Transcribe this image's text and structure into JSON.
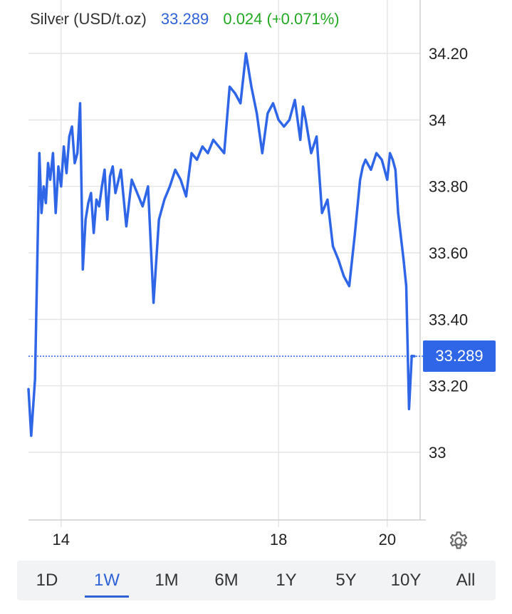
{
  "header": {
    "instrument": "Silver (USD/t.oz)",
    "price": "33.289",
    "change": "0.024 (+0.071%)"
  },
  "last_price_label": "33.289",
  "tabs": [
    {
      "label": "1D",
      "active": false
    },
    {
      "label": "1W",
      "active": true
    },
    {
      "label": "1M",
      "active": false
    },
    {
      "label": "6M",
      "active": false
    },
    {
      "label": "1Y",
      "active": false
    },
    {
      "label": "5Y",
      "active": false
    },
    {
      "label": "10Y",
      "active": false
    },
    {
      "label": "All",
      "active": false
    }
  ],
  "colors": {
    "line": "#2f66e8",
    "grid": "#e6e6e6",
    "price_text": "#2e62d6",
    "change_text": "#22a822"
  },
  "icons": {
    "settings": "gear-icon"
  },
  "chart_data": {
    "type": "line",
    "title": "Silver (USD/t.oz)",
    "y_tick_labels": [
      "34.20",
      "34",
      "33.80",
      "33.60",
      "33.40",
      "33.20",
      "33"
    ],
    "y_tick_values": [
      34.2,
      34.0,
      33.8,
      33.6,
      33.4,
      33.2,
      33.0
    ],
    "x_tick_labels": [
      "14",
      "18",
      "20"
    ],
    "x_tick_values": [
      14,
      18,
      20
    ],
    "ylim": [
      32.8,
      34.35
    ],
    "xlim": [
      13.4,
      20.5
    ],
    "last_value": 33.289,
    "grid": true,
    "series": [
      {
        "x": [
          13.4,
          13.45,
          13.52,
          13.6,
          13.64,
          13.68,
          13.72,
          13.76,
          13.8,
          13.85,
          13.9,
          13.95,
          14.0,
          14.05,
          14.1,
          14.15,
          14.2,
          14.25,
          14.3,
          14.35,
          14.4,
          14.45,
          14.5,
          14.55,
          14.6,
          14.65,
          14.7,
          14.75,
          14.8,
          14.85,
          14.9,
          14.95,
          15.0,
          15.1,
          15.2,
          15.3,
          15.4,
          15.5,
          15.6,
          15.7,
          15.8,
          15.9,
          16.0,
          16.1,
          16.2,
          16.3,
          16.4,
          16.5,
          16.6,
          16.7,
          16.8,
          16.9,
          17.0,
          17.1,
          17.2,
          17.3,
          17.4,
          17.5,
          17.6,
          17.7,
          17.8,
          17.9,
          18.0,
          18.1,
          18.2,
          18.3,
          18.4,
          18.45,
          18.5,
          18.6,
          18.7,
          18.8,
          18.9,
          19.0,
          19.1,
          19.2,
          19.3,
          19.4,
          19.5,
          19.55,
          19.6,
          19.7,
          19.8,
          19.9,
          20.0,
          20.05,
          20.1,
          20.15,
          20.2,
          20.25,
          20.3,
          20.35,
          20.4,
          20.45,
          20.5
        ],
        "values": [
          33.19,
          33.05,
          33.22,
          33.9,
          33.72,
          33.8,
          33.75,
          33.87,
          33.82,
          33.9,
          33.72,
          33.86,
          33.8,
          33.92,
          33.84,
          33.95,
          33.98,
          33.87,
          33.9,
          34.05,
          33.55,
          33.7,
          33.75,
          33.78,
          33.66,
          33.76,
          33.74,
          33.8,
          33.85,
          33.7,
          33.83,
          33.86,
          33.78,
          33.85,
          33.68,
          33.82,
          33.78,
          33.74,
          33.8,
          33.45,
          33.7,
          33.76,
          33.8,
          33.85,
          33.82,
          33.77,
          33.9,
          33.88,
          33.92,
          33.9,
          33.94,
          33.92,
          33.9,
          34.1,
          34.08,
          34.05,
          34.2,
          34.1,
          34.02,
          33.9,
          34.02,
          34.05,
          34.0,
          33.98,
          34.0,
          34.06,
          33.94,
          34.04,
          34.0,
          33.9,
          33.95,
          33.72,
          33.76,
          33.62,
          33.58,
          33.53,
          33.5,
          33.65,
          33.82,
          33.86,
          33.88,
          33.85,
          33.9,
          33.88,
          33.82,
          33.9,
          33.88,
          33.85,
          33.72,
          33.65,
          33.58,
          33.5,
          33.13,
          33.29,
          33.289
        ]
      }
    ]
  }
}
